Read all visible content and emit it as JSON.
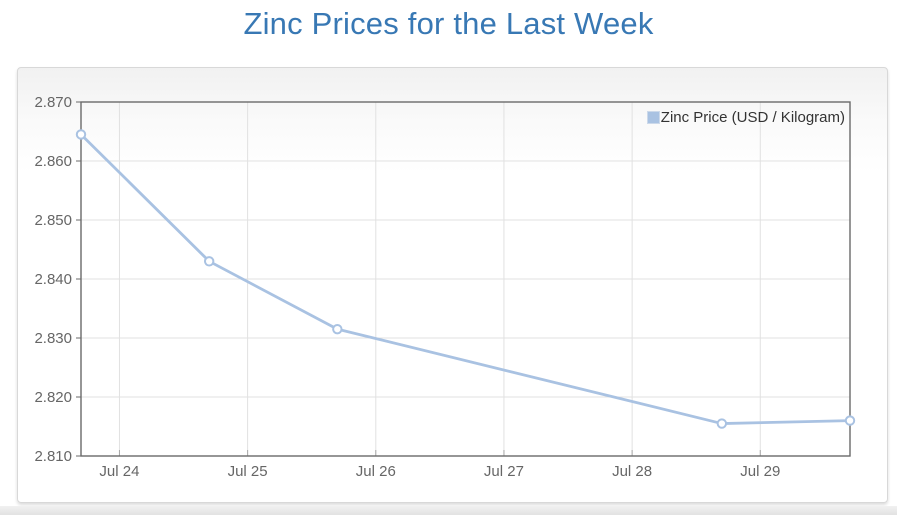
{
  "page": {
    "title": "Zinc Prices for the Last Week",
    "title_color": "#3878b4"
  },
  "chart_data": {
    "type": "line",
    "title": "Zinc Prices for the Last Week",
    "xlabel": "",
    "ylabel": "",
    "legend": {
      "position": "top-right",
      "swatch_color": "#a9c2e2"
    },
    "series": [
      {
        "name": "Zinc Price (USD / Kilogram)",
        "points": [
          {
            "date": "Jul 23",
            "x_day": 23.7,
            "value": 2.8645
          },
          {
            "date": "Jul 24",
            "x_day": 24.7,
            "value": 2.843
          },
          {
            "date": "Jul 25",
            "x_day": 25.7,
            "value": 2.8315
          },
          {
            "date": "Jul 28",
            "x_day": 28.7,
            "value": 2.8155
          },
          {
            "date": "Jul 29",
            "x_day": 29.7,
            "value": 2.816
          }
        ]
      }
    ],
    "x_ticks": [
      {
        "day": 24,
        "label": "Jul 24"
      },
      {
        "day": 25,
        "label": "Jul 25"
      },
      {
        "day": 26,
        "label": "Jul 26"
      },
      {
        "day": 27,
        "label": "Jul 27"
      },
      {
        "day": 28,
        "label": "Jul 28"
      },
      {
        "day": 29,
        "label": "Jul 29"
      }
    ],
    "y_ticks": [
      2.87,
      2.86,
      2.85,
      2.84,
      2.83,
      2.82,
      2.81
    ],
    "xlim_days": [
      23.7,
      29.7
    ],
    "ylim": [
      2.81,
      2.87
    ],
    "grid": true,
    "colors": {
      "line": "#a9c2e2",
      "marker_fill": "#ffffff",
      "grid": "#e1e1e1",
      "plot_border": "#6a6a6a",
      "axis_text": "#666666",
      "legend_text": "#333333"
    }
  }
}
